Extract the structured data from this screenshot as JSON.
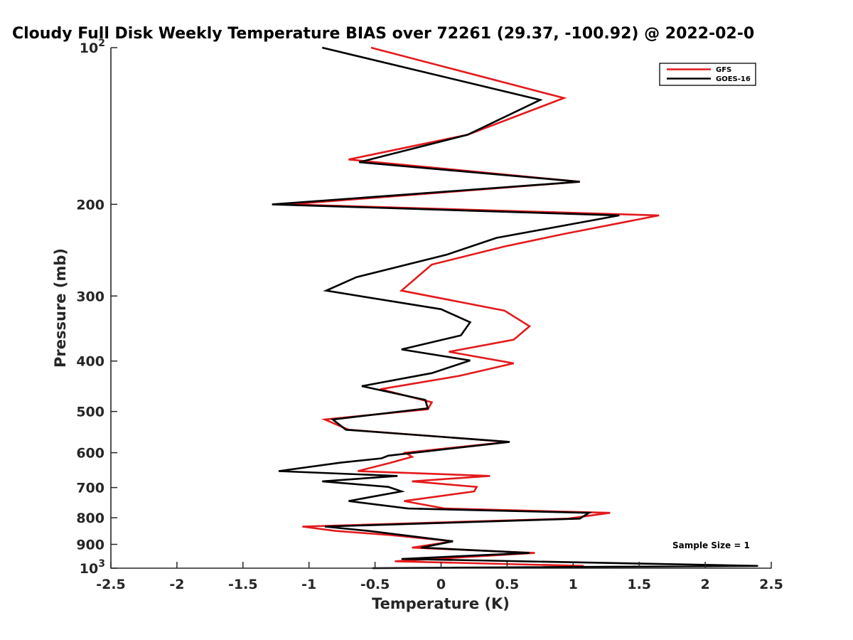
{
  "chart_data": {
    "type": "line",
    "title": "Cloudy Full Disk Weekly Temperature BIAS over 72261 (29.37, -100.92) @ 2022-02-0",
    "xlabel": "Temperature (K)",
    "ylabel": "Pressure (mb)",
    "xlim": [
      -2.5,
      2.5
    ],
    "ylim": [
      1000,
      100
    ],
    "yscale": "log",
    "x_ticks": [
      "-2.5",
      "-2",
      "-1.5",
      "-1",
      "-0.5",
      "0",
      "0.5",
      "1",
      "1.5",
      "2",
      "2.5"
    ],
    "x_tick_values": [
      -2.5,
      -2,
      -1.5,
      -1,
      -0.5,
      0,
      0.5,
      1,
      1.5,
      2,
      2.5
    ],
    "y_ticks": [
      {
        "value": 100,
        "base": "10",
        "exp": "2"
      },
      {
        "value": 200,
        "label": "200"
      },
      {
        "value": 300,
        "label": "300"
      },
      {
        "value": 400,
        "label": "400"
      },
      {
        "value": 500,
        "label": "500"
      },
      {
        "value": 600,
        "label": "600"
      },
      {
        "value": 700,
        "label": "700"
      },
      {
        "value": 800,
        "label": "800"
      },
      {
        "value": 900,
        "label": "900"
      },
      {
        "value": 1000,
        "base": "10",
        "exp": "3"
      }
    ],
    "grid": false,
    "legend_position": "top-right",
    "annotation": "Sample Size = 1",
    "series": [
      {
        "name": "GFS",
        "color": "#e31a1c",
        "points": [
          [
            -0.53,
            100
          ],
          [
            0.93,
            125
          ],
          [
            0.2,
            147
          ],
          [
            -0.7,
            164
          ],
          [
            1.05,
            181
          ],
          [
            -1.15,
            200
          ],
          [
            1.65,
            210
          ],
          [
            0.93,
            228
          ],
          [
            0.48,
            241
          ],
          [
            -0.07,
            261
          ],
          [
            -0.3,
            293
          ],
          [
            0.48,
            320
          ],
          [
            0.67,
            343
          ],
          [
            0.55,
            364
          ],
          [
            0.06,
            384
          ],
          [
            0.55,
            404
          ],
          [
            0.14,
            427
          ],
          [
            -0.46,
            453
          ],
          [
            -0.07,
            480
          ],
          [
            -0.1,
            495
          ],
          [
            -0.88,
            518
          ],
          [
            -0.7,
            542
          ],
          [
            0.51,
            572
          ],
          [
            -0.27,
            600
          ],
          [
            -0.22,
            611
          ],
          [
            -0.38,
            627
          ],
          [
            -0.63,
            651
          ],
          [
            0.37,
            665
          ],
          [
            -0.22,
            681
          ],
          [
            0.27,
            698
          ],
          [
            0.25,
            712
          ],
          [
            -0.28,
            743
          ],
          [
            0.03,
            768
          ],
          [
            1.28,
            783
          ],
          [
            0.96,
            803
          ],
          [
            -1.05,
            832
          ],
          [
            -0.8,
            848
          ],
          [
            -0.38,
            864
          ],
          [
            0.09,
            888
          ],
          [
            -0.22,
            913
          ],
          [
            0.71,
            935
          ],
          [
            -0.35,
            970
          ],
          [
            1.08,
            990
          ]
        ]
      },
      {
        "name": "GOES-16",
        "color": "#000000",
        "points": [
          [
            -0.9,
            100
          ],
          [
            0.75,
            126
          ],
          [
            0.2,
            147
          ],
          [
            -0.62,
            166
          ],
          [
            1.05,
            181
          ],
          [
            -1.28,
            200
          ],
          [
            1.35,
            210
          ],
          [
            0.42,
            232
          ],
          [
            0.04,
            250
          ],
          [
            -0.64,
            276
          ],
          [
            -0.87,
            293
          ],
          [
            0.0,
            318
          ],
          [
            0.22,
            337
          ],
          [
            0.15,
            357
          ],
          [
            -0.3,
            380
          ],
          [
            0.22,
            399
          ],
          [
            -0.07,
            422
          ],
          [
            -0.6,
            447
          ],
          [
            -0.12,
            475
          ],
          [
            -0.1,
            493
          ],
          [
            -0.82,
            518
          ],
          [
            -0.72,
            542
          ],
          [
            0.52,
            572
          ],
          [
            -0.4,
            608
          ],
          [
            -0.45,
            615
          ],
          [
            -0.76,
            627
          ],
          [
            -1.23,
            651
          ],
          [
            -0.33,
            665
          ],
          [
            -0.9,
            681
          ],
          [
            -0.4,
            698
          ],
          [
            -0.3,
            712
          ],
          [
            -0.7,
            743
          ],
          [
            -0.25,
            768
          ],
          [
            1.12,
            783
          ],
          [
            1.05,
            803
          ],
          [
            -0.88,
            832
          ],
          [
            -0.55,
            848
          ],
          [
            0.09,
            888
          ],
          [
            -0.15,
            913
          ],
          [
            0.67,
            935
          ],
          [
            -0.3,
            960
          ],
          [
            2.4,
            990
          ],
          [
            -0.52,
            1000
          ]
        ]
      }
    ]
  }
}
